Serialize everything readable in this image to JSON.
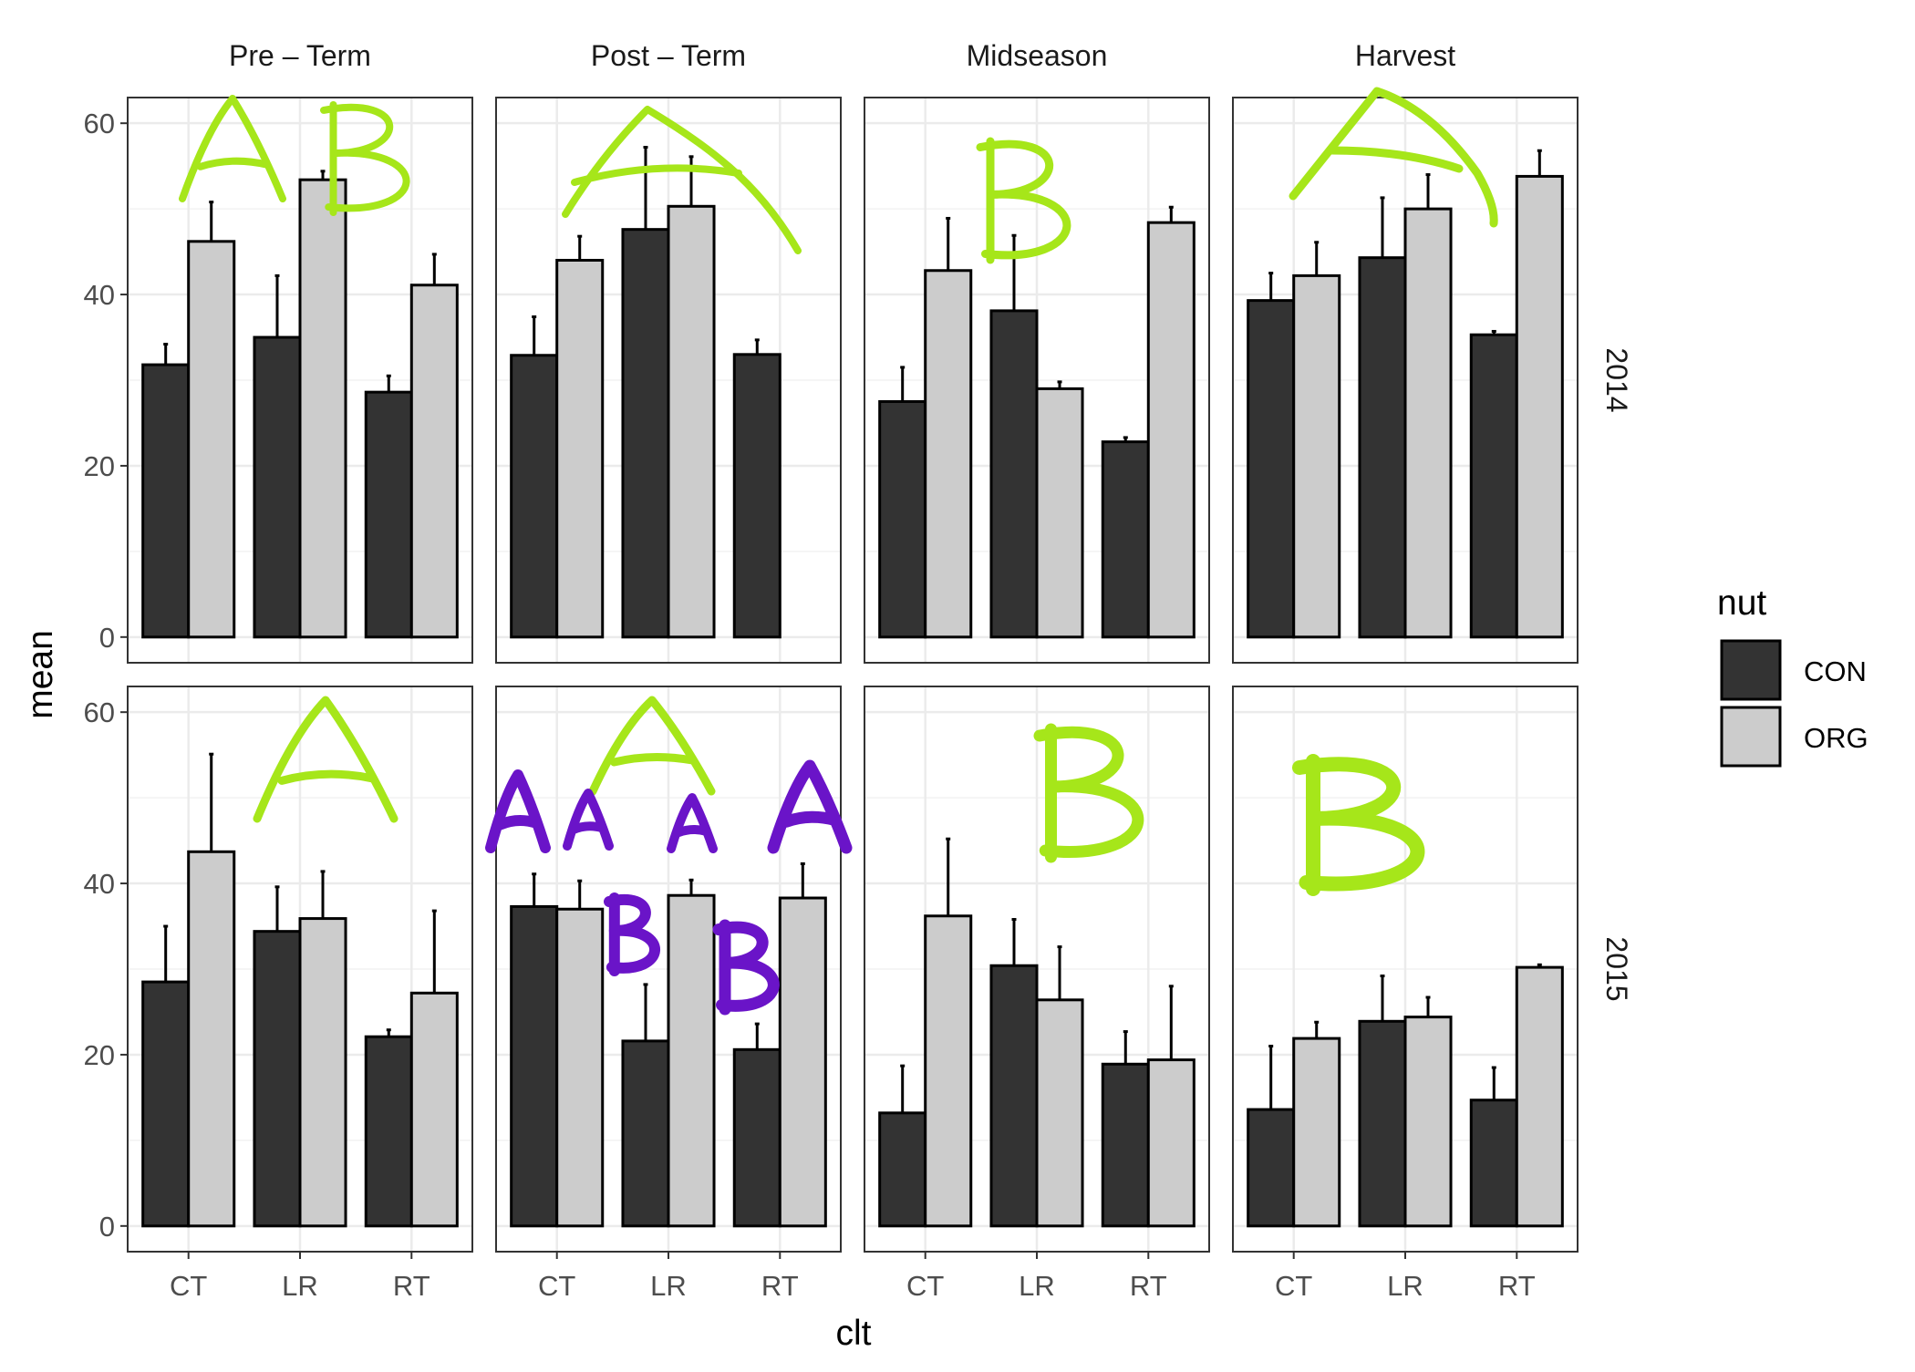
{
  "chart_data": {
    "type": "bar",
    "subtype": "faceted grouped bar with error bars",
    "x_label": "clt",
    "y_label": "mean",
    "ylim": [
      0,
      60
    ],
    "y_ticks": [
      0,
      20,
      40,
      60
    ],
    "categories": [
      "CT",
      "LR",
      "RT"
    ],
    "facet_columns": [
      "Pre – Term",
      "Post – Term",
      "Midseason",
      "Harvest"
    ],
    "facet_rows": [
      "2014",
      "2015"
    ],
    "legend": {
      "title": "nut",
      "position": "right",
      "items": [
        {
          "label": "CON",
          "color": "#333333"
        },
        {
          "label": "ORG",
          "color": "#cccccc"
        }
      ]
    },
    "grid": true,
    "panels": [
      {
        "row": "2014",
        "column": "Pre – Term",
        "series": [
          {
            "name": "CON",
            "values": [
              31.8,
              35.0,
              28.6
            ],
            "errors": [
              2.4,
              7.2,
              1.9
            ]
          },
          {
            "name": "ORG",
            "values": [
              46.2,
              53.4,
              41.1
            ],
            "errors": [
              4.6,
              1.0,
              3.6
            ]
          }
        ]
      },
      {
        "row": "2014",
        "column": "Post – Term",
        "series": [
          {
            "name": "CON",
            "values": [
              32.9,
              47.6,
              33.0
            ],
            "errors": [
              4.5,
              9.6,
              1.7
            ]
          },
          {
            "name": "ORG",
            "values": [
              44.0,
              50.3,
              null
            ],
            "errors": [
              2.8,
              5.8,
              null
            ]
          }
        ]
      },
      {
        "row": "2014",
        "column": "Midseason",
        "series": [
          {
            "name": "CON",
            "values": [
              27.5,
              38.1,
              22.8
            ],
            "errors": [
              4.0,
              8.8,
              0.5
            ]
          },
          {
            "name": "ORG",
            "values": [
              42.8,
              29.0,
              48.4
            ],
            "errors": [
              6.1,
              0.8,
              1.8
            ]
          }
        ]
      },
      {
        "row": "2014",
        "column": "Harvest",
        "series": [
          {
            "name": "CON",
            "values": [
              39.3,
              44.3,
              35.3
            ],
            "errors": [
              3.2,
              7.0,
              0.4
            ]
          },
          {
            "name": "ORG",
            "values": [
              42.2,
              50.0,
              53.8
            ],
            "errors": [
              3.9,
              4.0,
              3.0
            ]
          }
        ]
      },
      {
        "row": "2015",
        "column": "Pre – Term",
        "series": [
          {
            "name": "CON",
            "values": [
              28.5,
              34.4,
              22.1
            ],
            "errors": [
              6.5,
              5.2,
              0.8
            ]
          },
          {
            "name": "ORG",
            "values": [
              43.7,
              35.9,
              27.2
            ],
            "errors": [
              11.4,
              5.5,
              9.6
            ]
          }
        ]
      },
      {
        "row": "2015",
        "column": "Post – Term",
        "series": [
          {
            "name": "CON",
            "values": [
              37.3,
              21.6,
              20.6
            ],
            "errors": [
              3.8,
              6.6,
              3.0
            ]
          },
          {
            "name": "ORG",
            "values": [
              37.0,
              38.6,
              38.3
            ],
            "errors": [
              3.3,
              1.8,
              4.0
            ]
          }
        ]
      },
      {
        "row": "2015",
        "column": "Midseason",
        "series": [
          {
            "name": "CON",
            "values": [
              13.2,
              30.4,
              18.9
            ],
            "errors": [
              5.5,
              5.4,
              3.8
            ]
          },
          {
            "name": "ORG",
            "values": [
              36.2,
              26.4,
              19.4
            ],
            "errors": [
              9.0,
              6.2,
              8.6
            ]
          }
        ]
      },
      {
        "row": "2015",
        "column": "Harvest",
        "series": [
          {
            "name": "CON",
            "values": [
              13.6,
              23.9,
              14.7
            ],
            "errors": [
              7.4,
              5.3,
              3.8
            ]
          },
          {
            "name": "ORG",
            "values": [
              21.9,
              24.4,
              30.2
            ],
            "errors": [
              1.9,
              2.3,
              0.3
            ]
          }
        ]
      }
    ],
    "annotations": {
      "description": "handwritten significance letters drawn over the panels (lime and purple ink)",
      "lime_color": "#a6e61a",
      "purple_color": "#6a14c8"
    }
  }
}
